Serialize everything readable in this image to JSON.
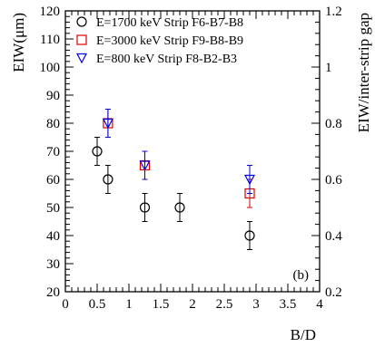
{
  "chart_data": {
    "type": "scatter",
    "xlabel": "B/D",
    "ylabel": "EIW(μm)",
    "y2label": "EIW/inter-strip gap",
    "xlim": [
      0,
      4
    ],
    "ylim": [
      20,
      120
    ],
    "y2lim": [
      0.2,
      1.2
    ],
    "x_ticks": [
      "0",
      "0.5",
      "1",
      "1.5",
      "2",
      "2.5",
      "3",
      "3.5",
      "4"
    ],
    "y_ticks": [
      "20",
      "30",
      "40",
      "50",
      "60",
      "70",
      "80",
      "90",
      "100",
      "110",
      "120"
    ],
    "y2_ticks": [
      "0.2",
      "0.4",
      "0.6",
      "0.8",
      "1",
      "1.2"
    ],
    "annotation": "(b)",
    "grid": false,
    "legend_position": "top-left",
    "series": [
      {
        "name": "E=1700 keV Strip F6-B7-B8",
        "marker": "circle",
        "color": "#000000",
        "points": [
          {
            "x": 0.5,
            "y": 70,
            "err": 5
          },
          {
            "x": 0.67,
            "y": 60,
            "err": 5
          },
          {
            "x": 1.25,
            "y": 50,
            "err": 5
          },
          {
            "x": 1.8,
            "y": 50,
            "err": 5
          },
          {
            "x": 2.9,
            "y": 40,
            "err": 5
          }
        ]
      },
      {
        "name": "E=3000 keV Strip F9-B8-B9",
        "marker": "square",
        "color": "#dd0000",
        "points": [
          {
            "x": 0.67,
            "y": 80,
            "err": 5
          },
          {
            "x": 1.25,
            "y": 65,
            "err": 5
          },
          {
            "x": 2.9,
            "y": 55,
            "err": 5
          }
        ]
      },
      {
        "name": "E=800 keV Strip F8-B2-B3",
        "marker": "triangle-down",
        "color": "#0000dd",
        "points": [
          {
            "x": 0.67,
            "y": 80,
            "err": 5
          },
          {
            "x": 1.25,
            "y": 65,
            "err": 5
          },
          {
            "x": 2.9,
            "y": 60,
            "err": 5
          }
        ]
      }
    ]
  }
}
